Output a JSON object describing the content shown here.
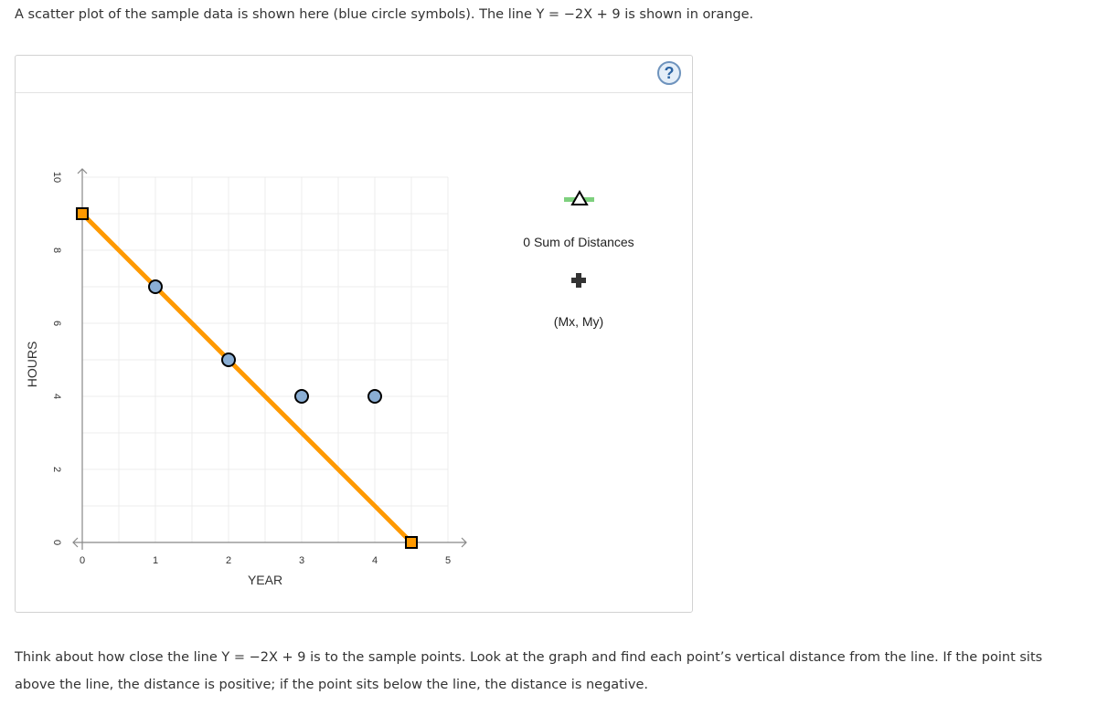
{
  "intro_text": "A scatter plot of the sample data is shown here (blue circle symbols). The line Y = −2X + 9 is shown in orange.",
  "help_label": "?",
  "sum_of_distances_label": "0 Sum of Distances",
  "midpoint_label": "(Mx, My)",
  "outro_text": "Think about how close the line Y = −2X + 9 is to the sample points. Look at the graph and find each point’s vertical distance from the line. If the point sits above the line, the distance is positive; if the point sits below the line, the distance is negative.",
  "icons": {
    "help": "question-mark-icon",
    "triangle": "triangle-marker-icon",
    "plus": "plus-icon"
  },
  "colors": {
    "points": "#8aaed4",
    "line": "#ff9900",
    "triangle_bar": "#7ed07e"
  },
  "chart_data": {
    "type": "scatter",
    "xlabel": "YEAR",
    "ylabel": "HOURS",
    "xlim": [
      0,
      5
    ],
    "ylim": [
      0,
      10
    ],
    "x_ticks": [
      "0",
      "1",
      "2",
      "3",
      "4",
      "5"
    ],
    "y_ticks": [
      "0",
      "2",
      "4",
      "6",
      "8",
      "10"
    ],
    "grid": true,
    "series": [
      {
        "x": [
          1,
          2,
          3,
          4
        ],
        "y": [
          7,
          5,
          4,
          4
        ]
      }
    ],
    "line": {
      "equation": "Y = −2X + 9",
      "slope": -2,
      "intercept": 9,
      "endpoints": [
        [
          0,
          9
        ],
        [
          4.5,
          0
        ]
      ]
    }
  }
}
